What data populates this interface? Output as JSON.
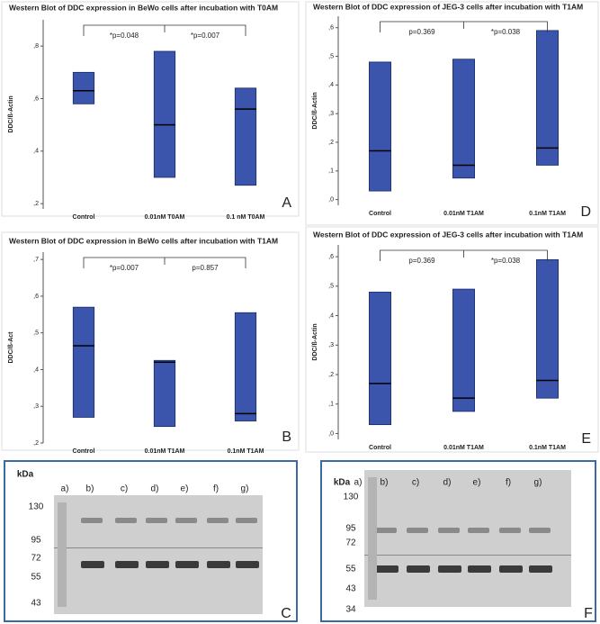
{
  "chart_data": [
    {
      "type": "box",
      "title": "Western Blot of DDC expression in BeWo cells after incubation with T0AM",
      "y_label": "DDC/ß-Actin",
      "categories": [
        "Control",
        "0.01nM T0AM",
        "0.1 nM T0AM"
      ],
      "q1": [
        0.58,
        0.3,
        0.27
      ],
      "median": [
        0.63,
        0.5,
        0.56
      ],
      "q3": [
        0.7,
        0.78,
        0.64
      ],
      "color": "#3b55ad",
      "ylim": [
        0.18,
        0.9
      ],
      "yticks": [
        {
          "value": 0.2,
          "label": ",2"
        },
        {
          "value": 0.4,
          "label": ",4"
        },
        {
          "value": 0.6,
          "label": ",6"
        },
        {
          "value": 0.8,
          "label": ",8"
        }
      ],
      "annotations": [
        "*p=0.048",
        "*p=0.007"
      ],
      "panel_label": "A"
    },
    {
      "type": "box",
      "title": "Western Blot of DDC expression in BeWo cells after incubation with T1AM",
      "y_label": "DDC/ß-Act",
      "categories": [
        "Control",
        "0.01nM T1AM",
        "0.1nM T1AM"
      ],
      "q1": [
        0.27,
        0.245,
        0.26
      ],
      "median": [
        0.465,
        0.42,
        0.28
      ],
      "q3": [
        0.57,
        0.425,
        0.555
      ],
      "color": "#3b55ad",
      "ylim": [
        0.2,
        0.72
      ],
      "yticks": [
        {
          "value": 0.2,
          "label": ",2"
        },
        {
          "value": 0.3,
          "label": ",3"
        },
        {
          "value": 0.4,
          "label": ",4"
        },
        {
          "value": 0.5,
          "label": ",5"
        },
        {
          "value": 0.6,
          "label": ",6"
        },
        {
          "value": 0.7,
          "label": ",7"
        }
      ],
      "annotations": [
        "*p=0.007",
        "p=0.857"
      ],
      "panel_label": "B"
    },
    {
      "type": "box",
      "title": "Western Blot of DDC expression of JEG-3 cells after incubation with T1AM",
      "y_label": "DDC/ß-Actin",
      "categories": [
        "Control",
        "0.01nM T1AM",
        "0.1nM T1AM"
      ],
      "q1": [
        0.03,
        0.075,
        0.12
      ],
      "median": [
        0.17,
        0.12,
        0.18
      ],
      "q3": [
        0.48,
        0.49,
        0.59
      ],
      "color": "#3b55ad",
      "ylim": [
        -0.02,
        0.64
      ],
      "yticks": [
        {
          "value": 0,
          "label": ",0"
        },
        {
          "value": 0.1,
          "label": ",1"
        },
        {
          "value": 0.2,
          "label": ",2"
        },
        {
          "value": 0.3,
          "label": ",3"
        },
        {
          "value": 0.4,
          "label": ",4"
        },
        {
          "value": 0.5,
          "label": ",5"
        },
        {
          "value": 0.6,
          "label": ",6"
        }
      ],
      "annotations": [
        "p=0.369",
        "*p=0.038"
      ],
      "panel_label": "D"
    },
    {
      "type": "box",
      "title": "Western Blot of DDC expression of JEG-3 cells after incubation with T1AM",
      "y_label": "DDC/ß-Actin",
      "categories": [
        "Control",
        "0.01nM T1AM",
        "0.1nM T1AM"
      ],
      "q1": [
        0.03,
        0.075,
        0.12
      ],
      "median": [
        0.17,
        0.12,
        0.18
      ],
      "q3": [
        0.48,
        0.49,
        0.59
      ],
      "color": "#3b55ad",
      "ylim": [
        -0.02,
        0.64
      ],
      "yticks": [
        {
          "value": 0,
          "label": ",0"
        },
        {
          "value": 0.1,
          "label": ",1"
        },
        {
          "value": 0.2,
          "label": ",2"
        },
        {
          "value": 0.3,
          "label": ",3"
        },
        {
          "value": 0.4,
          "label": ",4"
        },
        {
          "value": 0.5,
          "label": ",5"
        },
        {
          "value": 0.6,
          "label": ",6"
        }
      ],
      "annotations": [
        "p=0.369",
        "*p=0.038"
      ],
      "panel_label": "E"
    }
  ],
  "blots": [
    {
      "unit": "kDa",
      "markers": [
        "130",
        "95",
        "72",
        "55",
        "43"
      ],
      "lanes": [
        "a)",
        "b)",
        "c)",
        "d)",
        "e)",
        "f)",
        "g)"
      ],
      "panel_label": "C"
    },
    {
      "unit": "kDa",
      "markers": [
        "130",
        "95",
        "72",
        "55",
        "43",
        "34"
      ],
      "lanes": [
        "a)",
        "b)",
        "c)",
        "d)",
        "e)",
        "f)",
        "g)"
      ],
      "panel_label": "F"
    }
  ]
}
